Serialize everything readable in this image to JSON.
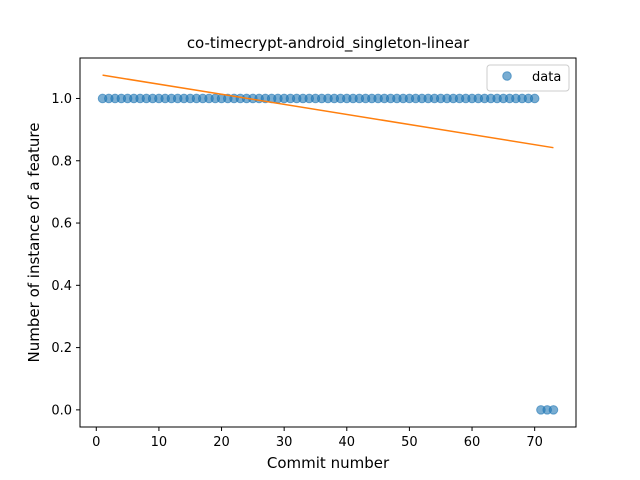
{
  "chart_data": {
    "type": "scatter",
    "title": "co-timecrypt-android_singleton-linear",
    "xlabel": "Commit number",
    "ylabel": "Number of instance of a feature",
    "xlim": [
      -2.6,
      76.6
    ],
    "ylim": [
      -0.055,
      1.13
    ],
    "xticks": [
      0,
      10,
      20,
      30,
      40,
      50,
      60,
      70
    ],
    "xtick_labels": [
      "0",
      "10",
      "20",
      "30",
      "40",
      "50",
      "60",
      "70"
    ],
    "yticks": [
      0.0,
      0.2,
      0.4,
      0.6,
      0.8,
      1.0
    ],
    "ytick_labels": [
      "0.0",
      "0.2",
      "0.4",
      "0.6",
      "0.8",
      "1.0"
    ],
    "grid": false,
    "legend_position": "top-right",
    "series": [
      {
        "name": "data",
        "kind": "scatter",
        "color": "#1f77b4",
        "opacity": 0.6,
        "x": [
          1,
          2,
          3,
          4,
          5,
          6,
          7,
          8,
          9,
          10,
          11,
          12,
          13,
          14,
          15,
          16,
          17,
          18,
          19,
          20,
          21,
          22,
          23,
          24,
          25,
          26,
          27,
          28,
          29,
          30,
          31,
          32,
          33,
          34,
          35,
          36,
          37,
          38,
          39,
          40,
          41,
          42,
          43,
          44,
          45,
          46,
          47,
          48,
          49,
          50,
          51,
          52,
          53,
          54,
          55,
          56,
          57,
          58,
          59,
          60,
          61,
          62,
          63,
          64,
          65,
          66,
          67,
          68,
          69,
          70,
          71,
          72,
          73
        ],
        "y": [
          1,
          1,
          1,
          1,
          1,
          1,
          1,
          1,
          1,
          1,
          1,
          1,
          1,
          1,
          1,
          1,
          1,
          1,
          1,
          1,
          1,
          1,
          1,
          1,
          1,
          1,
          1,
          1,
          1,
          1,
          1,
          1,
          1,
          1,
          1,
          1,
          1,
          1,
          1,
          1,
          1,
          1,
          1,
          1,
          1,
          1,
          1,
          1,
          1,
          1,
          1,
          1,
          1,
          1,
          1,
          1,
          1,
          1,
          1,
          1,
          1,
          1,
          1,
          1,
          1,
          1,
          1,
          1,
          1,
          1,
          0,
          0,
          0
        ]
      },
      {
        "kind": "line",
        "color": "#ff7f0e",
        "x": [
          1,
          73
        ],
        "y": [
          1.075,
          0.842
        ]
      }
    ]
  }
}
